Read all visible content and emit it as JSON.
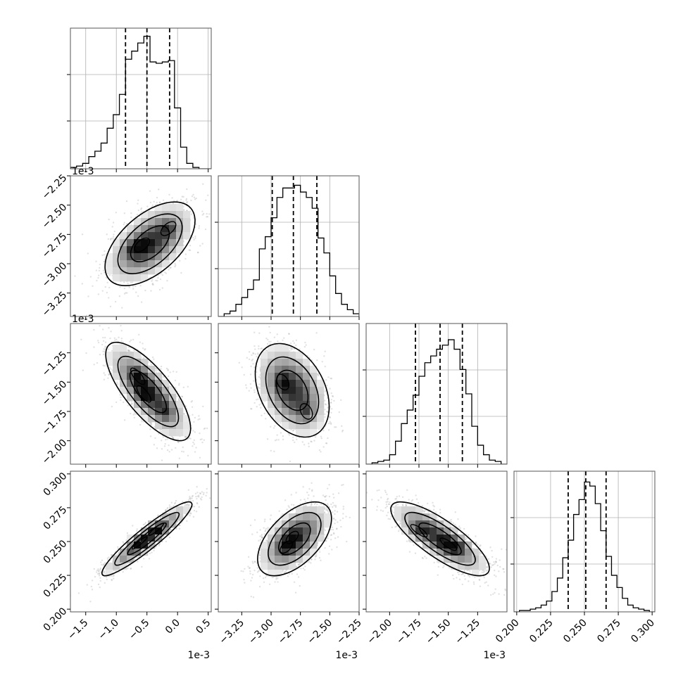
{
  "chart_data": {
    "type": "corner",
    "colors": {
      "ink": "#000000",
      "grid": "#b0b0b0",
      "sample": "#8a8a8a",
      "background": "#ffffff"
    },
    "parameters": [
      {
        "offset_label": "1e-3",
        "range": [
          -1.75,
          0.55
        ],
        "ticks": [
          -1.5,
          -1.0,
          -0.5,
          0.0,
          0.5
        ],
        "tick_labels": [
          "−1.5",
          "−1.0",
          "−0.5",
          "0.0",
          "0.5"
        ],
        "quantiles": [
          -0.85,
          -0.5,
          -0.13
        ]
      },
      {
        "offset_label": "1e-3",
        "range": [
          -3.45,
          -2.25
        ],
        "ticks": [
          -3.25,
          -3.0,
          -2.75,
          -2.5,
          -2.25
        ],
        "tick_labels": [
          "−3.25",
          "−3.00",
          "−2.75",
          "−2.50",
          "−2.25"
        ],
        "quantiles": [
          -2.99,
          -2.81,
          -2.61
        ]
      },
      {
        "offset_label": "1e-3",
        "range": [
          -2.2,
          -1.0
        ],
        "ticks": [
          -2.0,
          -1.75,
          -1.5,
          -1.25
        ],
        "tick_labels": [
          "−2.00",
          "−1.75",
          "−1.50",
          "−1.25"
        ],
        "quantiles": [
          -1.78,
          -1.57,
          -1.38
        ]
      },
      {
        "offset_label": "",
        "range": [
          0.198,
          0.302
        ],
        "ticks": [
          0.2,
          0.225,
          0.25,
          0.275,
          0.3
        ],
        "tick_labels": [
          "0.200",
          "0.225",
          "0.250",
          "0.275",
          "0.300"
        ],
        "quantiles": [
          0.238,
          0.251,
          0.266
        ]
      }
    ],
    "histograms": [
      {
        "edges": [
          -1.75,
          -1.65,
          -1.55,
          -1.45,
          -1.35,
          -1.25,
          -1.15,
          -1.05,
          -0.95,
          -0.85,
          -0.75,
          -0.65,
          -0.55,
          -0.45,
          -0.35,
          -0.25,
          -0.15,
          -0.05,
          0.05,
          0.15,
          0.25,
          0.35,
          0.45,
          0.55
        ],
        "counts": [
          0.01,
          0.02,
          0.04,
          0.09,
          0.13,
          0.19,
          0.3,
          0.4,
          0.55,
          0.81,
          0.87,
          0.93,
          0.98,
          0.79,
          0.78,
          0.79,
          0.8,
          0.45,
          0.16,
          0.04,
          0.01,
          0,
          0
        ]
      },
      {
        "edges": [
          -3.45,
          -3.4,
          -3.35,
          -3.3,
          -3.25,
          -3.2,
          -3.15,
          -3.1,
          -3.05,
          -3.0,
          -2.95,
          -2.9,
          -2.85,
          -2.8,
          -2.75,
          -2.7,
          -2.65,
          -2.6,
          -2.55,
          -2.5,
          -2.45,
          -2.4,
          -2.35,
          -2.3,
          -2.25
        ],
        "counts": [
          0,
          0.02,
          0.04,
          0.09,
          0.14,
          0.2,
          0.27,
          0.5,
          0.59,
          0.73,
          0.88,
          0.95,
          0.95,
          0.97,
          0.92,
          0.88,
          0.8,
          0.58,
          0.47,
          0.3,
          0.17,
          0.09,
          0.05,
          0.02
        ]
      },
      {
        "edges": [
          -2.2,
          -2.15,
          -2.1,
          -2.05,
          -2.0,
          -1.95,
          -1.9,
          -1.85,
          -1.8,
          -1.75,
          -1.7,
          -1.65,
          -1.6,
          -1.55,
          -1.5,
          -1.45,
          -1.4,
          -1.35,
          -1.3,
          -1.25,
          -1.2,
          -1.15,
          -1.1,
          -1.05,
          -1.0
        ],
        "counts": [
          0,
          0.01,
          0.02,
          0.03,
          0.07,
          0.17,
          0.3,
          0.4,
          0.51,
          0.65,
          0.75,
          0.8,
          0.85,
          0.88,
          0.92,
          0.85,
          0.7,
          0.52,
          0.28,
          0.14,
          0.07,
          0.03,
          0.02,
          0
        ]
      },
      {
        "edges": [
          0.198,
          0.202,
          0.206,
          0.21,
          0.214,
          0.218,
          0.222,
          0.226,
          0.23,
          0.234,
          0.238,
          0.242,
          0.246,
          0.25,
          0.254,
          0.258,
          0.262,
          0.266,
          0.27,
          0.274,
          0.278,
          0.282,
          0.286,
          0.29,
          0.294,
          0.298,
          0.302
        ],
        "counts": [
          0,
          0.01,
          0.01,
          0.02,
          0.03,
          0.05,
          0.08,
          0.15,
          0.25,
          0.4,
          0.53,
          0.72,
          0.83,
          0.96,
          0.93,
          0.8,
          0.6,
          0.41,
          0.27,
          0.18,
          0.1,
          0.05,
          0.03,
          0.02,
          0.01,
          0
        ]
      }
    ],
    "pairs": [
      {
        "row": 1,
        "col": 0,
        "center": [
          -0.45,
          -2.83
        ],
        "spread": [
          0.35,
          0.17
        ],
        "correlation": 0.55,
        "peaks": [
          [
            -0.58,
            -2.84
          ],
          [
            -0.15,
            -2.7
          ],
          [
            -0.75,
            -2.88
          ]
        ]
      },
      {
        "row": 2,
        "col": 0,
        "center": [
          -0.48,
          -1.58
        ],
        "spread": [
          0.33,
          0.2
        ],
        "correlation": -0.75,
        "peaks": [
          [
            -0.65,
            -1.45
          ],
          [
            -0.55,
            -1.6
          ],
          [
            -0.2,
            -1.75
          ]
        ]
      },
      {
        "row": 2,
        "col": 1,
        "center": [
          -2.82,
          -1.57
        ],
        "spread": [
          0.15,
          0.19
        ],
        "correlation": -0.35,
        "peaks": [
          [
            -2.9,
            -1.5
          ],
          [
            -2.7,
            -1.75
          ]
        ]
      },
      {
        "row": 3,
        "col": 0,
        "center": [
          -0.5,
          0.252
        ],
        "spread": [
          0.35,
          0.013
        ],
        "correlation": 0.93,
        "peaks": [
          [
            -0.62,
            0.249
          ],
          [
            -0.35,
            0.259
          ]
        ]
      },
      {
        "row": 3,
        "col": 1,
        "center": [
          -2.8,
          0.252
        ],
        "spread": [
          0.15,
          0.013
        ],
        "correlation": 0.55,
        "peaks": [
          [
            -2.87,
            0.246
          ],
          [
            -2.82,
            0.253
          ]
        ]
      },
      {
        "row": 3,
        "col": 2,
        "center": [
          -1.57,
          0.252
        ],
        "spread": [
          0.2,
          0.013
        ],
        "correlation": -0.8,
        "peaks": [
          [
            -1.75,
            0.258
          ],
          [
            -1.5,
            0.248
          ],
          [
            -1.42,
            0.246
          ]
        ]
      }
    ]
  }
}
